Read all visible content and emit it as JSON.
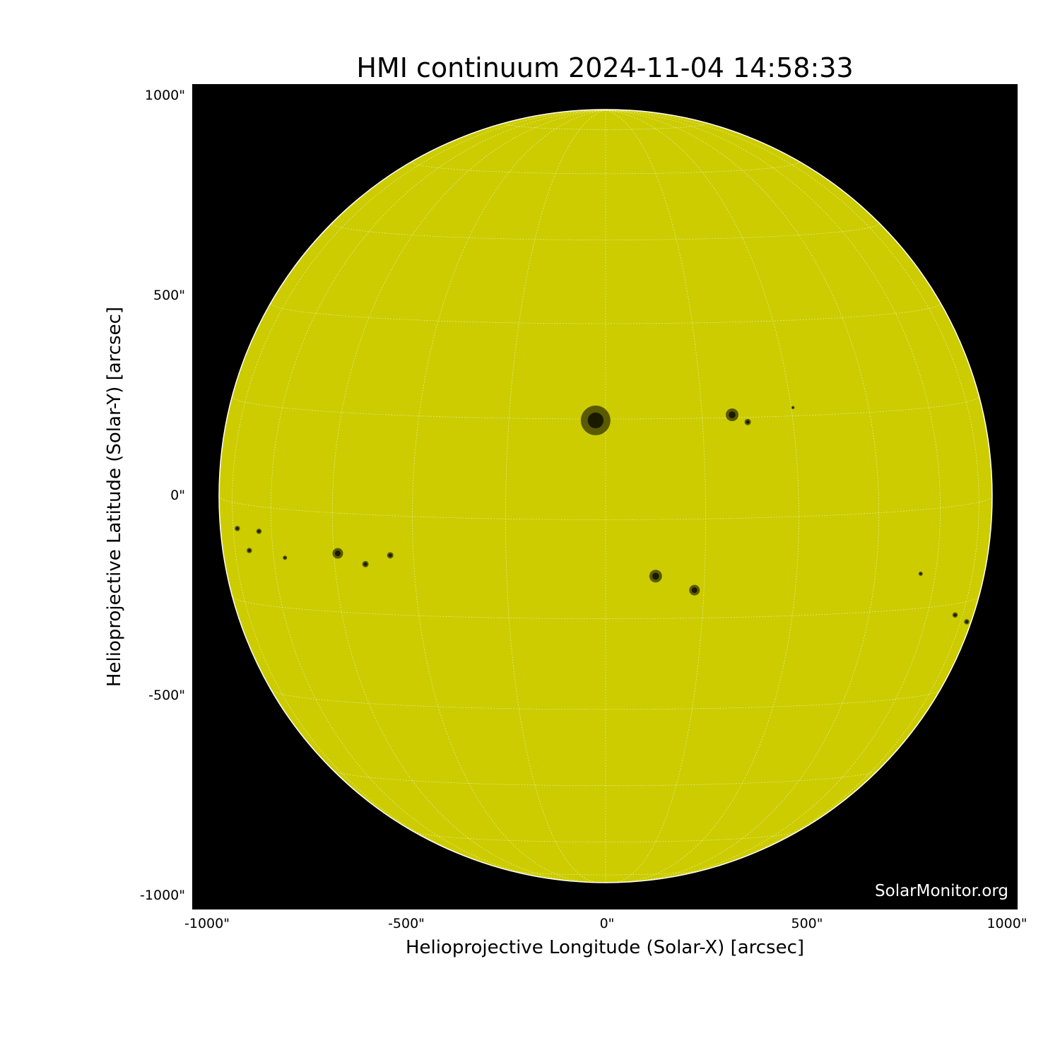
{
  "title": "HMI continuum 2024-11-04 14:58:33",
  "xlabel": "Helioprojective Longitude (Solar-X) [arcsec]",
  "ylabel": "Helioprojective Latitude (Solar-Y) [arcsec]",
  "xticks": [
    "-1000\"",
    "-500\"",
    "0\"",
    "500\"",
    "1000\""
  ],
  "yticks": [
    "1000\"",
    "500\"",
    "0\"",
    "-500\"",
    "-1000\""
  ],
  "watermark": "SolarMonitor.org",
  "colors": {
    "disk": "#cccc00",
    "background": "#000000",
    "grid": "#ffffff",
    "sunspot": "#1a1a00"
  },
  "sunspots_arcsec": [
    [
      -25,
      189,
      28
    ],
    [
      316,
      203,
      12
    ],
    [
      355,
      185,
      6
    ],
    [
      468,
      221,
      3
    ],
    [
      125,
      -200,
      12
    ],
    [
      222,
      -235,
      10
    ],
    [
      -669,
      -143,
      10
    ],
    [
      -600,
      -170,
      6
    ],
    [
      -538,
      -148,
      6
    ],
    [
      -801,
      -154,
      4
    ],
    [
      -866,
      -88,
      5
    ],
    [
      -890,
      -136,
      5
    ],
    [
      -920,
      -81,
      5
    ],
    [
      787,
      -194,
      4
    ],
    [
      873,
      -297,
      5
    ],
    [
      902,
      -314,
      5
    ]
  ]
}
